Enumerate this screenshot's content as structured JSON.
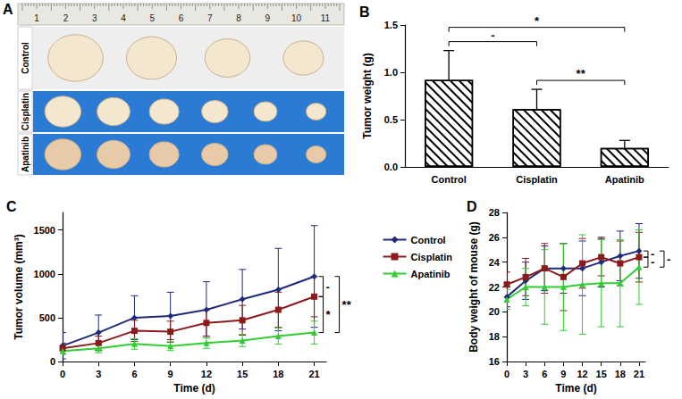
{
  "photo": {
    "panel": "A",
    "ruler": [
      1,
      2,
      3,
      4,
      5,
      6,
      7,
      8,
      9,
      10,
      11
    ],
    "rows": [
      {
        "label": "Control",
        "tumors": 4
      },
      {
        "label": "Cisplatin",
        "tumors": 6
      },
      {
        "label": "Apatinib",
        "tumors": 6
      }
    ]
  },
  "chart_data": [
    {
      "panel": "B",
      "type": "bar",
      "categories": [
        "Control",
        "Cisplatin",
        "Apatinib"
      ],
      "values": [
        0.92,
        0.61,
        0.2
      ],
      "errors": [
        0.31,
        0.21,
        0.08
      ],
      "color": "#000000",
      "ylabel": "Tumor weight (g)",
      "ylim": [
        0,
        1.5
      ],
      "yticks": [
        {
          "value": 0,
          "label": "0.0"
        },
        {
          "value": 0.5,
          "label": "0.5"
        },
        {
          "value": 1,
          "label": "1.0"
        },
        {
          "value": 1.5,
          "label": "1.5"
        }
      ],
      "grid": false,
      "annotations": [
        {
          "from": "Control",
          "to": "Cisplatin",
          "text": "-"
        },
        {
          "from": "Control",
          "to": "Apatinib",
          "text": "*"
        },
        {
          "from": "Cisplatin",
          "to": "Apatinib",
          "text": "**"
        }
      ]
    },
    {
      "panel": "C",
      "type": "line",
      "x": [
        0,
        3,
        6,
        9,
        12,
        15,
        18,
        21
      ],
      "xlabel": "Time (d)",
      "ylabel": "Tumor volume (mm³)",
      "xlim": [
        0,
        22
      ],
      "xticks": [
        0,
        3,
        6,
        9,
        12,
        15,
        18,
        21
      ],
      "ylim": [
        0,
        1700
      ],
      "yticks": [
        0,
        500,
        1000,
        1500
      ],
      "grid": false,
      "legend": "right",
      "series": [
        {
          "name": "Control",
          "color": "#1f2a78",
          "marker": "diamond",
          "values": [
            180,
            330,
            500,
            520,
            590,
            710,
            820,
            970
          ],
          "errors": [
            150,
            200,
            250,
            270,
            320,
            340,
            470,
            580
          ]
        },
        {
          "name": "Cisplatin",
          "color": "#8b1a1a",
          "marker": "square",
          "values": [
            150,
            210,
            350,
            340,
            440,
            470,
            590,
            740
          ],
          "errors": [
            60,
            80,
            120,
            120,
            150,
            170,
            200,
            230
          ]
        },
        {
          "name": "Apatinib",
          "color": "#33cc33",
          "marker": "triangle",
          "values": [
            120,
            150,
            200,
            175,
            210,
            240,
            290,
            330
          ],
          "errors": [
            40,
            50,
            60,
            50,
            60,
            70,
            90,
            130
          ]
        }
      ],
      "annotations": [
        {
          "from": "Control",
          "to": "Cisplatin",
          "text": "-"
        },
        {
          "from": "Cisplatin",
          "to": "Apatinib",
          "text": "*"
        },
        {
          "from": "Control",
          "to": "Apatinib",
          "text": "**"
        }
      ]
    },
    {
      "panel": "D",
      "type": "line",
      "x": [
        0,
        3,
        6,
        9,
        12,
        15,
        18,
        21
      ],
      "xlabel": "Time (d)",
      "ylabel": "Body weight of mouse (g)",
      "xlim": [
        0,
        22
      ],
      "xticks": [
        0,
        3,
        6,
        9,
        12,
        15,
        18,
        21
      ],
      "ylim": [
        16,
        28
      ],
      "yticks": [
        16,
        18,
        20,
        22,
        24,
        26,
        28
      ],
      "grid": false,
      "legend": "none",
      "series": [
        {
          "name": "Control",
          "color": "#1f2a78",
          "marker": "diamond",
          "values": [
            21.2,
            22.5,
            23.5,
            23.5,
            23.5,
            24.0,
            24.5,
            24.9
          ],
          "errors": [
            0.8,
            1.5,
            1.8,
            2.0,
            2.2,
            2.0,
            2.0,
            2.2
          ]
        },
        {
          "name": "Cisplatin",
          "color": "#8b1a1a",
          "marker": "square",
          "values": [
            22.2,
            22.8,
            23.5,
            22.8,
            23.9,
            24.4,
            23.9,
            24.4
          ],
          "errors": [
            1.0,
            1.5,
            2.0,
            2.7,
            2.0,
            1.5,
            1.8,
            2.0
          ]
        },
        {
          "name": "Apatinib",
          "color": "#33cc33",
          "marker": "triangle",
          "values": [
            21.0,
            22.0,
            22.0,
            22.0,
            22.2,
            22.3,
            22.3,
            23.6
          ],
          "errors": [
            0.8,
            1.5,
            3.0,
            3.5,
            4.0,
            3.5,
            3.5,
            3.0
          ]
        }
      ],
      "annotations": [
        {
          "from": "Control",
          "to": "Cisplatin",
          "text": "-"
        },
        {
          "from": "Cisplatin",
          "to": "Apatinib",
          "text": "-"
        },
        {
          "from": "Control",
          "to": "Apatinib",
          "text": "-"
        }
      ]
    }
  ]
}
